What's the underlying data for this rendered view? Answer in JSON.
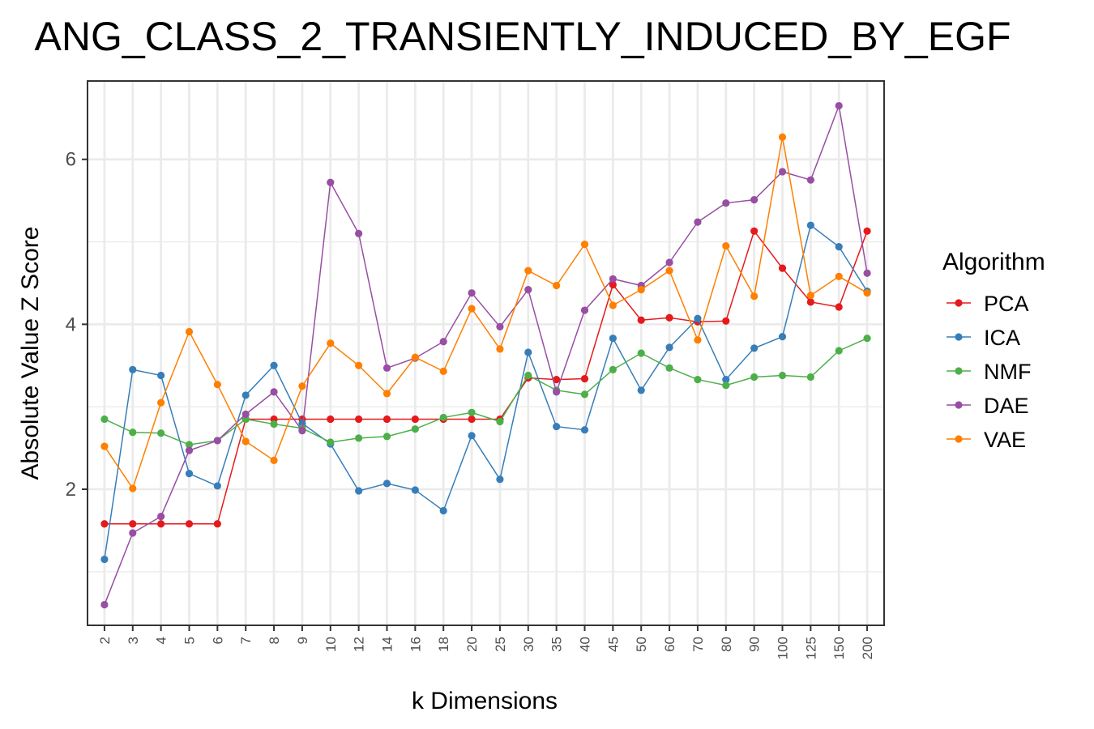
{
  "chart_data": {
    "type": "line",
    "title": "ANG_CLASS_2_TRANSIENTLY_INDUCED_BY_EGF",
    "xlabel": "k Dimensions",
    "ylabel": "Absolute Value Z Score",
    "categories": [
      "2",
      "3",
      "4",
      "5",
      "6",
      "7",
      "8",
      "9",
      "10",
      "12",
      "14",
      "16",
      "18",
      "20",
      "25",
      "30",
      "35",
      "40",
      "45",
      "50",
      "60",
      "70",
      "80",
      "90",
      "100",
      "125",
      "150",
      "200"
    ],
    "y_ticks": [
      2,
      4,
      6
    ],
    "ylim": [
      0.35,
      6.95
    ],
    "grid": true,
    "legend": {
      "title": "Algorithm",
      "position": "right"
    },
    "series": [
      {
        "name": "PCA",
        "color": "#e41a1c",
        "values": [
          1.58,
          1.58,
          1.58,
          1.58,
          1.58,
          2.85,
          2.85,
          2.85,
          2.85,
          2.85,
          2.85,
          2.85,
          2.85,
          2.85,
          2.85,
          3.35,
          3.33,
          3.34,
          4.48,
          4.05,
          4.08,
          4.03,
          4.04,
          5.13,
          4.68,
          4.27,
          4.21,
          5.13
        ]
      },
      {
        "name": "ICA",
        "color": "#377eb8",
        "values": [
          1.15,
          3.45,
          3.38,
          2.19,
          2.04,
          3.14,
          3.5,
          2.8,
          2.55,
          1.98,
          2.07,
          1.99,
          1.74,
          2.65,
          2.12,
          3.66,
          2.76,
          2.72,
          3.83,
          3.2,
          3.72,
          4.07,
          3.33,
          3.71,
          3.85,
          5.2,
          4.94,
          4.4
        ]
      },
      {
        "name": "NMF",
        "color": "#4daf4a",
        "values": [
          2.85,
          2.69,
          2.68,
          2.54,
          2.59,
          2.85,
          2.79,
          2.74,
          2.57,
          2.62,
          2.64,
          2.73,
          2.87,
          2.93,
          2.82,
          3.38,
          3.2,
          3.15,
          3.45,
          3.65,
          3.47,
          3.33,
          3.26,
          3.36,
          3.38,
          3.36,
          3.68,
          3.83
        ]
      },
      {
        "name": "DAE",
        "color": "#984ea3",
        "values": [
          0.6,
          1.47,
          1.67,
          2.47,
          2.59,
          2.91,
          3.18,
          2.71,
          5.72,
          5.1,
          3.47,
          3.59,
          3.79,
          4.38,
          3.97,
          4.42,
          3.18,
          4.17,
          4.55,
          4.47,
          4.75,
          5.24,
          5.47,
          5.51,
          5.85,
          5.75,
          6.65,
          4.62
        ]
      },
      {
        "name": "VAE",
        "color": "#ff7f00",
        "values": [
          2.52,
          2.01,
          3.05,
          3.91,
          3.27,
          2.58,
          2.35,
          3.25,
          3.77,
          3.5,
          3.16,
          3.6,
          3.43,
          4.19,
          3.7,
          4.65,
          4.47,
          4.97,
          4.23,
          4.42,
          4.65,
          3.81,
          4.95,
          4.34,
          6.27,
          4.35,
          4.58,
          4.38
        ]
      }
    ]
  }
}
